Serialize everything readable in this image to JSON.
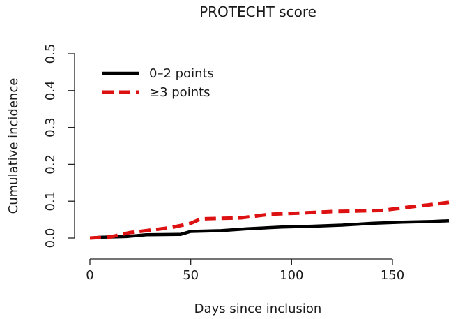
{
  "chart_data": {
    "type": "line",
    "title": "PROTECHT score",
    "xlabel": "Days since inclusion",
    "ylabel": "Cumulative incidence",
    "xlim": [
      0,
      180
    ],
    "ylim": [
      0,
      0.5
    ],
    "x_ticks": [
      0,
      50,
      100,
      150
    ],
    "x_tick_labels": [
      "0",
      "50",
      "100",
      "150"
    ],
    "y_ticks": [
      0,
      0.1,
      0.2,
      0.3,
      0.4,
      0.5
    ],
    "y_tick_labels": [
      "0.0",
      "0.1",
      "0.2",
      "0.3",
      "0.4",
      "0.5"
    ],
    "grid": false,
    "legend_position": "top-left",
    "series": [
      {
        "name": "0–2 points",
        "color": "#000000",
        "dash": "solid",
        "points": [
          [
            0,
            0
          ],
          [
            5,
            0.002
          ],
          [
            18,
            0.004
          ],
          [
            28,
            0.009
          ],
          [
            45,
            0.01
          ],
          [
            50,
            0.018
          ],
          [
            65,
            0.02
          ],
          [
            78,
            0.025
          ],
          [
            95,
            0.03
          ],
          [
            110,
            0.032
          ],
          [
            125,
            0.035
          ],
          [
            140,
            0.04
          ],
          [
            155,
            0.043
          ],
          [
            170,
            0.045
          ],
          [
            178,
            0.047
          ]
        ]
      },
      {
        "name": "≥3 points",
        "color": "#dd1111",
        "dash": "dashed",
        "points": [
          [
            0,
            0
          ],
          [
            10,
            0.003
          ],
          [
            20,
            0.015
          ],
          [
            28,
            0.02
          ],
          [
            40,
            0.028
          ],
          [
            50,
            0.04
          ],
          [
            55,
            0.052
          ],
          [
            75,
            0.055
          ],
          [
            90,
            0.065
          ],
          [
            105,
            0.068
          ],
          [
            120,
            0.072
          ],
          [
            145,
            0.075
          ],
          [
            155,
            0.082
          ],
          [
            168,
            0.09
          ],
          [
            178,
            0.097
          ]
        ]
      }
    ]
  }
}
